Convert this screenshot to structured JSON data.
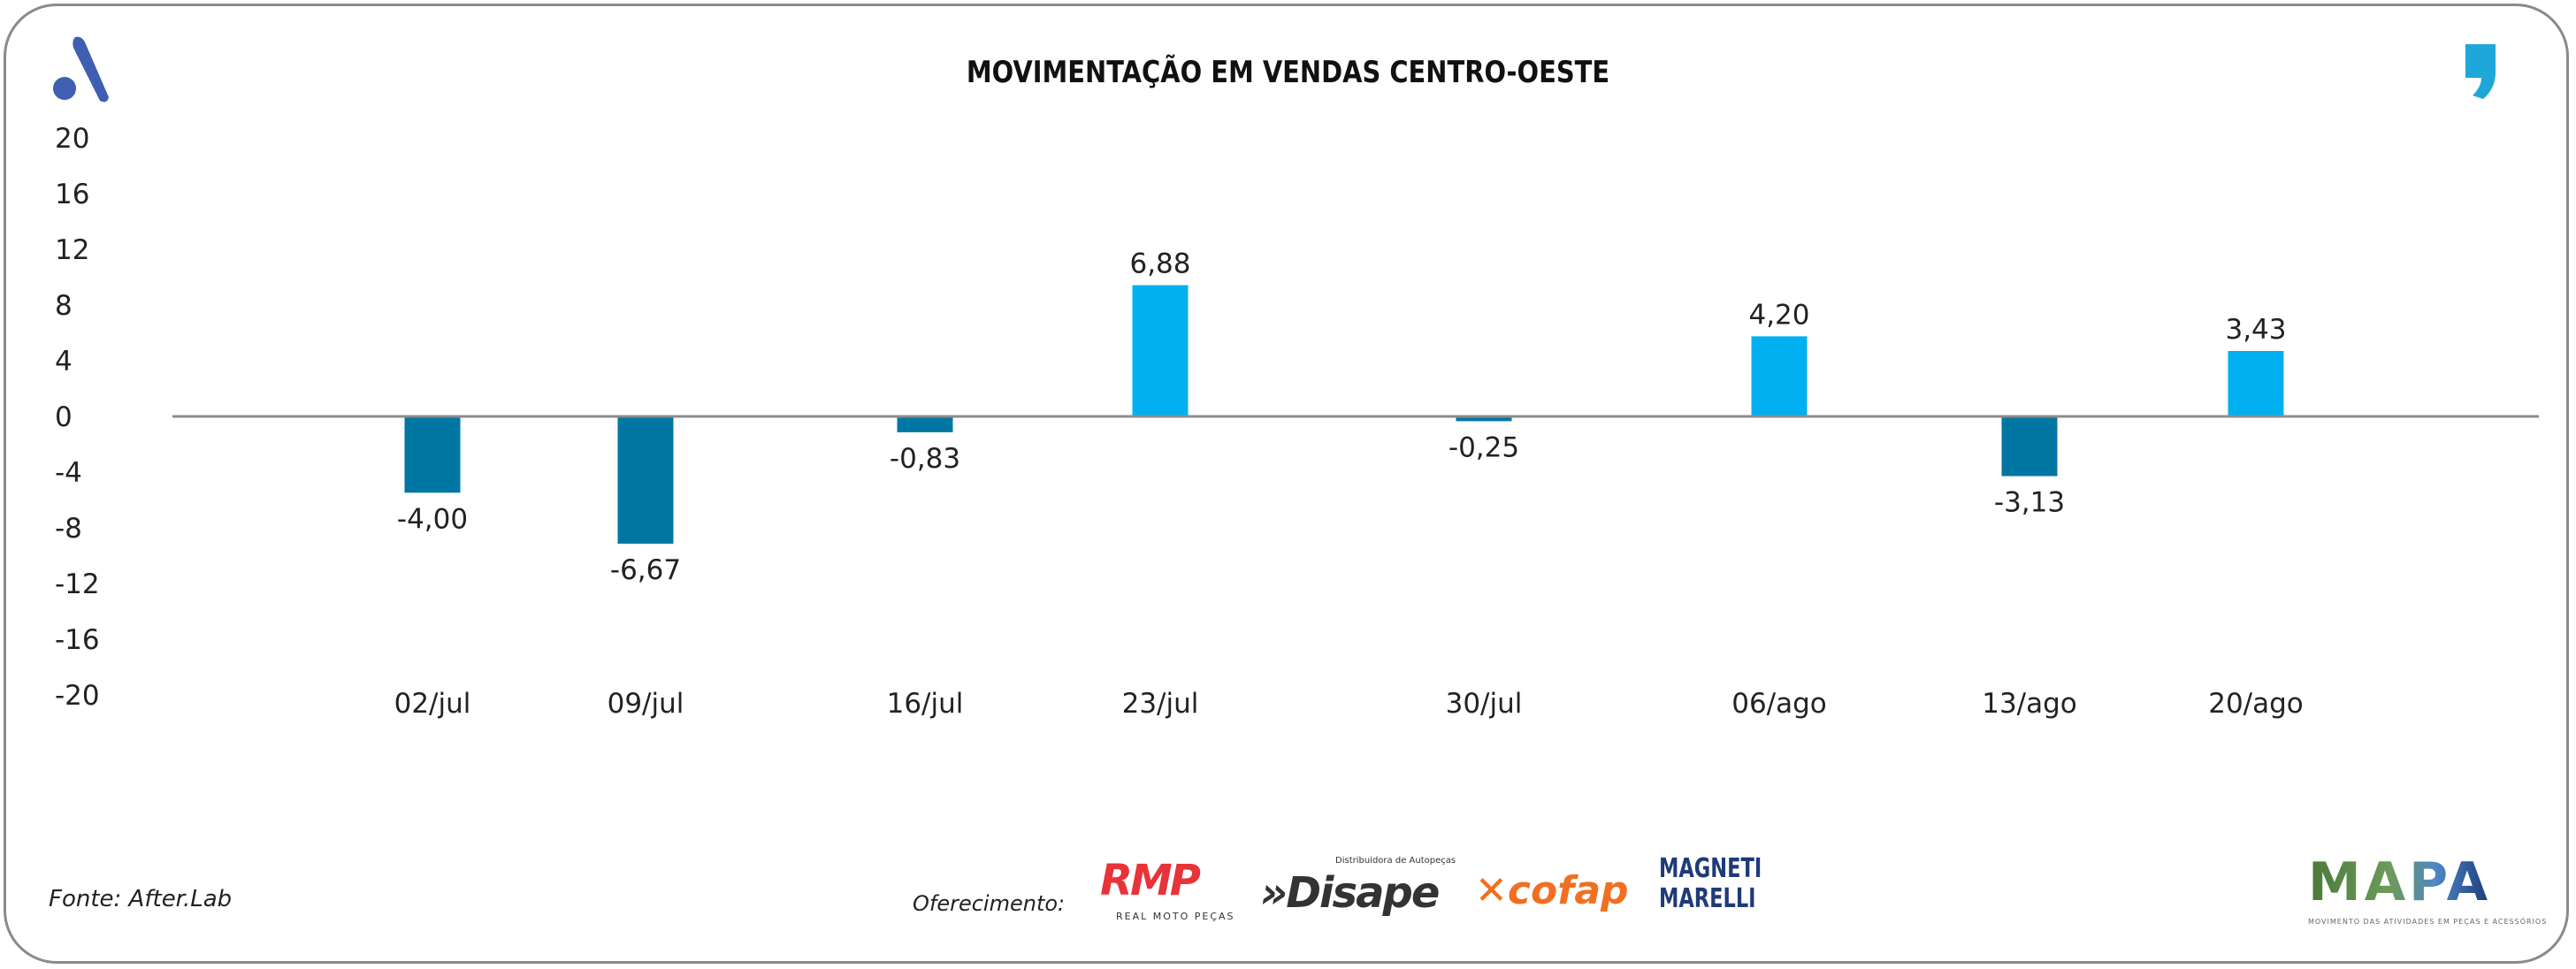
{
  "chart_data": {
    "type": "bar",
    "title": "MOVIMENTAÇÃO EM VENDAS CENTRO-OESTE",
    "categories": [
      "02/jul",
      "09/jul",
      "16/jul",
      "23/jul",
      "30/jul",
      "06/ago",
      "13/ago",
      "20/ago"
    ],
    "values": [
      -4.0,
      -6.67,
      -0.83,
      6.88,
      -0.25,
      4.2,
      -3.13,
      3.43
    ],
    "value_labels": [
      "-4,00",
      "-6,67",
      "-0,83",
      "6,88",
      "-0,25",
      "4,20",
      "-3,13",
      "3,43"
    ],
    "yticks": [
      "20",
      "16",
      "12",
      "8",
      "4",
      "0",
      "-4",
      "-8",
      "-12",
      "-16",
      "-20"
    ],
    "ylim": [
      -20,
      20
    ],
    "bar_scale_ylim": [
      -14.6,
      14.6
    ],
    "xlabel": "",
    "ylabel": "",
    "grid": false,
    "colors": {
      "positive": "#00b0f0",
      "negative": "#0077a3",
      "axis": "#8c8c8c"
    }
  },
  "footer": {
    "source": "Fonte: After.Lab",
    "sponsor_label": "Oferecimento:"
  },
  "logos": {
    "rmp": "RMP",
    "rmp_sub": "REAL MOTO PEÇAS",
    "disape": "»Disape",
    "disape_sub": "Distribuidora de Autopeças",
    "cofap": "✕cofap",
    "magneti": "MAGNETI",
    "marelli": "MARELLI",
    "mapa": "MAPA",
    "mapa_sub": "MOVIMENTO DAS ATIVIDADES EM PEÇAS E ACESSÓRIOS"
  }
}
